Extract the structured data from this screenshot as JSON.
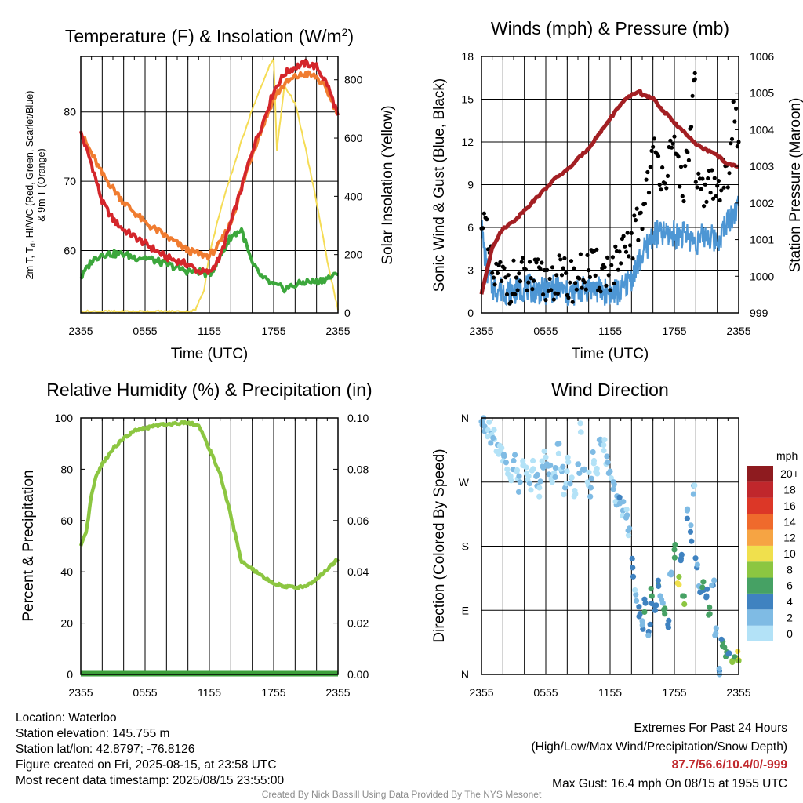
{
  "chart_data": [
    {
      "type": "line",
      "title": "Temperature (F) & Insolation (W/m²)",
      "xlabel": "Time (UTC)",
      "ylabel_left": "2m T, Td, HI/WC (Red, Green, Scarlet/Blue) & 9m T (Orange)",
      "ylabel_right": "Solar Insolation (Yellow)",
      "x_ticks": [
        "2355",
        "0555",
        "1155",
        "1755",
        "2355"
      ],
      "ylim_left": [
        51,
        88
      ],
      "yticks_left": [
        60,
        70,
        80
      ],
      "ylim_right": [
        0,
        880
      ],
      "yticks_right": [
        0,
        200,
        400,
        600,
        800
      ],
      "grid": true,
      "series": [
        {
          "name": "2m T",
          "color": "#d4262b",
          "axis": "left",
          "x": [
            0,
            1,
            2,
            3,
            4,
            5,
            6,
            7,
            8,
            9,
            10,
            11,
            12,
            13,
            14,
            15,
            16,
            17,
            18,
            19,
            20,
            21,
            22,
            23,
            24
          ],
          "values": [
            77,
            72.5,
            67,
            64.5,
            63,
            62,
            61,
            60,
            59,
            58.5,
            58,
            57,
            56.8,
            59,
            64,
            69,
            74.5,
            78.5,
            83,
            85.5,
            86.5,
            87,
            86.5,
            84,
            79.5
          ]
        },
        {
          "name": "9m T",
          "color": "#f07c30",
          "axis": "left",
          "x": [
            0,
            1,
            2,
            3,
            4,
            5,
            6,
            7,
            8,
            9,
            10,
            11,
            12,
            13,
            14,
            15,
            16,
            17,
            18,
            19,
            20,
            21,
            22,
            23,
            24
          ],
          "values": [
            77,
            74,
            71,
            69,
            67,
            65.5,
            64,
            63,
            62,
            61,
            60,
            59.5,
            59.2,
            61,
            64,
            69,
            74,
            78,
            82,
            84,
            85,
            85.5,
            85,
            83,
            79.8
          ]
        },
        {
          "name": "Td",
          "color": "#3ca73c",
          "axis": "left",
          "x": [
            0,
            1,
            2,
            3,
            4,
            5,
            6,
            7,
            8,
            9,
            10,
            11,
            12,
            13,
            14,
            15,
            16,
            17,
            18,
            19,
            20,
            21,
            22,
            23,
            24
          ],
          "values": [
            56,
            58.5,
            59.5,
            59.5,
            59.5,
            59,
            59,
            58.5,
            58,
            57.5,
            57,
            57,
            56.5,
            59,
            62,
            63,
            58,
            56,
            55,
            54.5,
            55,
            55.5,
            55.5,
            56,
            56.5
          ]
        },
        {
          "name": "Solar Insolation",
          "color": "#f5dc55",
          "axis": "right",
          "x": [
            0,
            1,
            2,
            3,
            4,
            5,
            6,
            7,
            8,
            9,
            10,
            10.7,
            11.5,
            12,
            13,
            14,
            15,
            16,
            17,
            17.6,
            18,
            18.3,
            19,
            20,
            21,
            22,
            23,
            24
          ],
          "values": [
            5,
            5,
            5,
            5,
            5,
            5,
            5,
            5,
            5,
            5,
            5,
            10,
            80,
            200,
            350,
            470,
            590,
            700,
            790,
            850,
            870,
            560,
            780,
            720,
            560,
            380,
            180,
            10
          ]
        }
      ]
    },
    {
      "type": "line",
      "title": "Winds (mph) & Pressure (mb)",
      "xlabel": "Time (UTC)",
      "ylabel_left": "Sonic Wind & Gust (Blue, Black)",
      "ylabel_right": "Station Pressure (Maroon)",
      "x_ticks": [
        "2355",
        "0555",
        "1155",
        "1755",
        "2355"
      ],
      "ylim_left": [
        0,
        18
      ],
      "yticks_left": [
        0,
        3,
        6,
        9,
        12,
        15,
        18
      ],
      "ylim_right": [
        999,
        1006
      ],
      "yticks_right": [
        999,
        1000,
        1001,
        1002,
        1003,
        1004,
        1005,
        1006
      ],
      "grid": true,
      "series": [
        {
          "name": "Sonic Wind",
          "color": "#4d96d4",
          "axis": "left",
          "x": [
            0,
            0.5,
            1,
            2,
            3,
            4,
            5,
            6,
            7,
            8,
            9,
            10,
            11,
            12,
            13,
            14,
            15,
            16,
            17,
            18,
            19,
            20,
            21,
            22,
            23,
            24
          ],
          "values": [
            6,
            3,
            1.8,
            1.6,
            1.5,
            1.8,
            1.6,
            1.5,
            1.8,
            1.3,
            1.5,
            1.8,
            1.6,
            1.4,
            1.5,
            2.5,
            4,
            5.5,
            5.5,
            5.5,
            5.5,
            5,
            5.5,
            5,
            6.5,
            7.5
          ]
        },
        {
          "name": "Gust",
          "color": "#000000",
          "axis": "left",
          "marker": "dot",
          "x": [
            0,
            0.5,
            1,
            2,
            3,
            4,
            5,
            6,
            7,
            8,
            9,
            10,
            11,
            12,
            13,
            14,
            15,
            15.5,
            16,
            17,
            18,
            19,
            19.92,
            20,
            21,
            22,
            23,
            23.5,
            24
          ],
          "values": [
            7.5,
            5,
            2.5,
            2.3,
            2.2,
            2.4,
            2.3,
            2.1,
            2.6,
            2.2,
            2.5,
            3,
            2.8,
            3,
            3.5,
            5,
            7,
            9.5,
            11,
            10,
            11,
            9,
            16.4,
            8,
            9,
            8.5,
            10,
            15,
            12
          ]
        },
        {
          "name": "Station Pressure",
          "color": "#a31f23",
          "axis": "right",
          "x": [
            0,
            1,
            2,
            3,
            4,
            5,
            6,
            7,
            8,
            9,
            10,
            11,
            12,
            13,
            14,
            14.8,
            15,
            16,
            17,
            18,
            19,
            20,
            21,
            22,
            23,
            24
          ],
          "values": [
            999.5,
            1000.8,
            1001.3,
            1001.5,
            1001.8,
            1002.1,
            1002.4,
            1002.7,
            1002.9,
            1003.2,
            1003.5,
            1003.9,
            1004.3,
            1004.7,
            1004.95,
            1005.05,
            1004.95,
            1004.85,
            1004.5,
            1004.2,
            1003.9,
            1003.6,
            1003.45,
            1003.3,
            1003.05,
            1003
          ]
        }
      ]
    },
    {
      "type": "line",
      "title": "Relative Humidity (%) & Precipitation (in)",
      "xlabel": "",
      "ylabel_left": "Percent & Precipitation",
      "x_ticks": [
        "2355",
        "0555",
        "1155",
        "1755",
        "2355"
      ],
      "ylim_left": [
        0,
        100
      ],
      "yticks_left": [
        0,
        20,
        40,
        60,
        80,
        100
      ],
      "ylim_right": [
        0,
        0.1
      ],
      "yticks_right": [
        "0.00",
        "0.02",
        "0.04",
        "0.06",
        "0.08",
        "0.10"
      ],
      "grid": true,
      "series": [
        {
          "name": "Relative Humidity",
          "color": "#8cc641",
          "axis": "left",
          "x": [
            0,
            0.5,
            1,
            1.5,
            2,
            3,
            4,
            5,
            6,
            7,
            8,
            9,
            10,
            11,
            12,
            13,
            14,
            15,
            16,
            17,
            18,
            19,
            20,
            21,
            22,
            23,
            24
          ],
          "values": [
            50,
            55,
            70,
            78,
            82,
            88,
            92,
            95,
            96,
            97,
            97.5,
            98,
            98.3,
            97,
            88,
            78,
            62,
            44,
            41,
            38,
            35.5,
            34.5,
            33.8,
            34.5,
            37,
            41,
            45
          ]
        },
        {
          "name": "Precipitation",
          "color": "#3ea03c",
          "axis": "right",
          "x": [
            0,
            24
          ],
          "values": [
            0,
            0
          ]
        }
      ]
    },
    {
      "type": "scatter",
      "title": "Wind Direction",
      "xlabel": "",
      "ylabel_left": "Direction (Colored By Speed)",
      "x_ticks": [
        "2355",
        "0555",
        "1155",
        "1755",
        "2355"
      ],
      "yticks_left": [
        "N",
        "E",
        "S",
        "W",
        "N"
      ],
      "ylim_left": [
        0,
        360
      ],
      "grid": true,
      "colorbar": {
        "title": "mph",
        "labels": [
          "0",
          "2",
          "4",
          "6",
          "8",
          "10",
          "12",
          "14",
          "16",
          "18",
          "20+"
        ],
        "colors": [
          "#b3e2f7",
          "#7fbbe4",
          "#3f82c0",
          "#46a164",
          "#8cc641",
          "#f0e04d",
          "#f6a443",
          "#ef6a2c",
          "#dc3727",
          "#c0272c",
          "#8e1b1f"
        ]
      },
      "points": [
        {
          "x": 0,
          "dir": 355,
          "speed": 2.5
        },
        {
          "x": 0.3,
          "dir": 348,
          "speed": 2
        },
        {
          "x": 0.6,
          "dir": 343,
          "speed": 1.5
        },
        {
          "x": 0.9,
          "dir": 338,
          "speed": 2
        },
        {
          "x": 1.2,
          "dir": 330,
          "speed": 1.5
        },
        {
          "x": 1.5,
          "dir": 322,
          "speed": 2
        },
        {
          "x": 1.8,
          "dir": 315,
          "speed": 1
        },
        {
          "x": 2.1,
          "dir": 306,
          "speed": 2
        },
        {
          "x": 2.4,
          "dir": 288,
          "speed": 1.5
        },
        {
          "x": 2.7,
          "dir": 276,
          "speed": 1
        },
        {
          "x": 3.0,
          "dir": 300,
          "speed": 2
        },
        {
          "x": 3.3,
          "dir": 285,
          "speed": 1
        },
        {
          "x": 3.6,
          "dir": 270,
          "speed": 2.5
        },
        {
          "x": 3.9,
          "dir": 295,
          "speed": 1.5
        },
        {
          "x": 4.2,
          "dir": 282,
          "speed": 1
        },
        {
          "x": 4.5,
          "dir": 268,
          "speed": 2
        },
        {
          "x": 4.8,
          "dir": 300,
          "speed": 1.5
        },
        {
          "x": 5.1,
          "dir": 278,
          "speed": 2.5
        },
        {
          "x": 5.4,
          "dir": 262,
          "speed": 1
        },
        {
          "x": 5.7,
          "dir": 292,
          "speed": 2
        },
        {
          "x": 6.0,
          "dir": 305,
          "speed": 1.5
        },
        {
          "x": 6.3,
          "dir": 281,
          "speed": 2.5
        },
        {
          "x": 6.6,
          "dir": 270,
          "speed": 1
        },
        {
          "x": 6.9,
          "dir": 290,
          "speed": 2
        },
        {
          "x": 7.2,
          "dir": 310,
          "speed": 1.5
        },
        {
          "x": 7.5,
          "dir": 285,
          "speed": 2.5
        },
        {
          "x": 7.8,
          "dir": 262,
          "speed": 2
        },
        {
          "x": 8.1,
          "dir": 298,
          "speed": 1.5
        },
        {
          "x": 8.4,
          "dir": 276,
          "speed": 2.5
        },
        {
          "x": 8.7,
          "dir": 258,
          "speed": 1
        },
        {
          "x": 9.0,
          "dir": 295,
          "speed": 2
        },
        {
          "x": 9.3,
          "dir": 340,
          "speed": 1.5
        },
        {
          "x": 9.6,
          "dir": 288,
          "speed": 2
        },
        {
          "x": 9.9,
          "dir": 270,
          "speed": 1
        },
        {
          "x": 10.2,
          "dir": 262,
          "speed": 2.5
        },
        {
          "x": 10.5,
          "dir": 300,
          "speed": 1.5
        },
        {
          "x": 10.8,
          "dir": 282,
          "speed": 1
        },
        {
          "x": 11.1,
          "dir": 330,
          "speed": 2
        },
        {
          "x": 11.4,
          "dir": 322,
          "speed": 1.5
        },
        {
          "x": 11.7,
          "dir": 306,
          "speed": 2
        },
        {
          "x": 12.0,
          "dir": 285,
          "speed": 2.5
        },
        {
          "x": 12.3,
          "dir": 260,
          "speed": 3
        },
        {
          "x": 12.6,
          "dir": 238,
          "speed": 2.5
        },
        {
          "x": 12.9,
          "dir": 240,
          "speed": 3.5
        },
        {
          "x": 13.2,
          "dir": 230,
          "speed": 2
        },
        {
          "x": 13.5,
          "dir": 220,
          "speed": 2.5
        },
        {
          "x": 13.8,
          "dir": 205,
          "speed": 3
        },
        {
          "x": 14.1,
          "dir": 150,
          "speed": 4
        },
        {
          "x": 14.4,
          "dir": 112,
          "speed": 3
        },
        {
          "x": 14.7,
          "dir": 95,
          "speed": 4
        },
        {
          "x": 15.0,
          "dir": 75,
          "speed": 3.5
        },
        {
          "x": 15.3,
          "dir": 100,
          "speed": 5
        },
        {
          "x": 15.6,
          "dir": 60,
          "speed": 4
        },
        {
          "x": 15.9,
          "dir": 110,
          "speed": 6
        },
        {
          "x": 16.2,
          "dir": 90,
          "speed": 5
        },
        {
          "x": 16.5,
          "dir": 125,
          "speed": 6.5
        },
        {
          "x": 16.8,
          "dir": 105,
          "speed": 3
        },
        {
          "x": 17.1,
          "dir": 85,
          "speed": 6
        },
        {
          "x": 17.4,
          "dir": 70,
          "speed": 4.5
        },
        {
          "x": 17.7,
          "dir": 140,
          "speed": 3
        },
        {
          "x": 18.0,
          "dir": 175,
          "speed": 7
        },
        {
          "x": 18.3,
          "dir": 128,
          "speed": 10
        },
        {
          "x": 18.6,
          "dir": 160,
          "speed": 5.5
        },
        {
          "x": 18.9,
          "dir": 110,
          "speed": 7.5
        },
        {
          "x": 19.2,
          "dir": 230,
          "speed": 3.5
        },
        {
          "x": 19.5,
          "dir": 200,
          "speed": 4
        },
        {
          "x": 19.8,
          "dir": 265,
          "speed": 3
        },
        {
          "x": 20.1,
          "dir": 150,
          "speed": 5
        },
        {
          "x": 20.4,
          "dir": 115,
          "speed": 4
        },
        {
          "x": 20.7,
          "dir": 130,
          "speed": 6
        },
        {
          "x": 21.0,
          "dir": 110,
          "speed": 4.5
        },
        {
          "x": 21.3,
          "dir": 85,
          "speed": 7
        },
        {
          "x": 21.6,
          "dir": 125,
          "speed": 4
        },
        {
          "x": 21.9,
          "dir": 65,
          "speed": 3.5
        },
        {
          "x": 22.2,
          "dir": 5,
          "speed": 4
        },
        {
          "x": 22.5,
          "dir": 40,
          "speed": 6.5
        },
        {
          "x": 22.8,
          "dir": 25,
          "speed": 7
        },
        {
          "x": 23.1,
          "dir": 30,
          "speed": 5
        },
        {
          "x": 23.4,
          "dir": 18,
          "speed": 8
        },
        {
          "x": 23.7,
          "dir": 24,
          "speed": 9
        },
        {
          "x": 24.0,
          "dir": 20,
          "speed": 10
        }
      ]
    }
  ],
  "plot1": {
    "title_main": "Temperature (F) & Insolation (W/m",
    "title_sup": "2",
    "title_end": ")",
    "xlabel": "Time (UTC)",
    "ylabel_line1": "2m T, T",
    "ylabel_sub": "d",
    "ylabel_line1_end": ", HI/WC (Red, Green, Scarlet/Blue)",
    "ylabel_line2": "& 9m T (Orange)",
    "ylabel_right": "Solar Insolation (Yellow)"
  },
  "plot2": {
    "title": "Winds (mph) & Pressure (mb)",
    "xlabel": "Time (UTC)",
    "ylabel_left": "Sonic Wind & Gust (Blue, Black)",
    "ylabel_right": "Station Pressure (Maroon)"
  },
  "plot3": {
    "title": "Relative Humidity (%) & Precipitation (in)",
    "ylabel_left": "Percent & Precipitation"
  },
  "plot4": {
    "title": "Wind Direction",
    "ylabel_left": "Direction (Colored By Speed)"
  },
  "info": {
    "location": "Location: Waterloo",
    "elevation": "Station elevation: 145.755 m",
    "latlon": "Station lat/lon: 42.8797; -76.8126",
    "created": "Figure created on Fri, 2025-08-15, at 23:58 UTC",
    "recent": "Most recent data timestamp: 2025/08/15 23:55:00"
  },
  "extremes": {
    "line1": "Extremes For Past 24 Hours",
    "line2": "(High/Low/Max Wind/Precipitation/Snow Depth)",
    "values": "87.7/56.6/10.4/0/-999",
    "gust": "Max Gust: 16.4 mph On 08/15 at 1955 UTC"
  },
  "credit": "Created By Nick Bassill Using Data Provided By The NYS Mesonet"
}
